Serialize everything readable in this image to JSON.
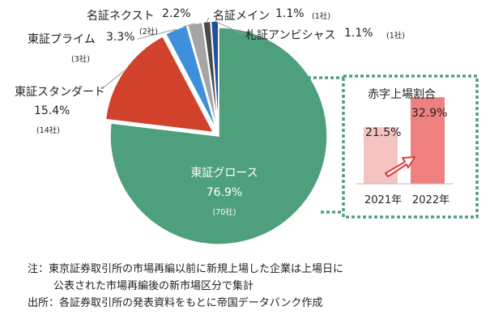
{
  "colors": {
    "growth": "#4ea07c",
    "standard": "#d2412b",
    "prime": "#3e8fdc",
    "nagoya_next": "#a5a5a5",
    "nagoya_main": "#4a4a4a",
    "sapporo_ambitious": "#1f4fa0",
    "border_box": "#4ea07c",
    "bar_2021": "#f6c3c3",
    "bar_2022": "#ee8080",
    "arrow_fill": "#ffffff",
    "arrow_stroke": "#e03a3a"
  },
  "chart_data": [
    {
      "type": "pie",
      "slices": [
        {
          "name": "東証グロース",
          "share_label": "76.9%",
          "count_label": "(70社)",
          "value": 76.9,
          "count": 70,
          "color_key": "growth",
          "exploded": false
        },
        {
          "name": "東証スタンダード",
          "share_label": "15.4%",
          "count_label": "(14社)",
          "value": 15.4,
          "count": 14,
          "color_key": "standard",
          "exploded": true
        },
        {
          "name": "東証プライム",
          "share_label": "3.3%",
          "count_label": "(3社)",
          "value": 3.3,
          "count": 3,
          "color_key": "prime",
          "exploded": true
        },
        {
          "name": "名証ネクスト",
          "share_label": "2.2%",
          "count_label": "(2社)",
          "value": 2.2,
          "count": 2,
          "color_key": "nagoya_next",
          "exploded": true
        },
        {
          "name": "名証メイン",
          "share_label": "1.1%",
          "count_label": "(1社)",
          "value": 1.1,
          "count": 1,
          "color_key": "nagoya_main",
          "exploded": true
        },
        {
          "name": "札証アンビシャス",
          "share_label": "1.1%",
          "count_label": "(1社)",
          "value": 1.1,
          "count": 1,
          "color_key": "sapporo_ambitious",
          "exploded": true
        }
      ]
    },
    {
      "type": "bar",
      "title": "赤字上場割合",
      "categories": [
        "2021年",
        "2022年"
      ],
      "values": [
        21.5,
        32.9
      ],
      "value_labels": [
        "21.5%",
        "32.9%"
      ],
      "ylim": [
        0,
        40
      ]
    }
  ],
  "notes": {
    "line1": "注：東京証券取引所の市場再編以前に新規上場した企業は上場日に",
    "line2": "公表された市場再編後の新市場区分で集計",
    "source": "出所：各証券取引所の発表資料をもとに帝国データバンク作成"
  }
}
